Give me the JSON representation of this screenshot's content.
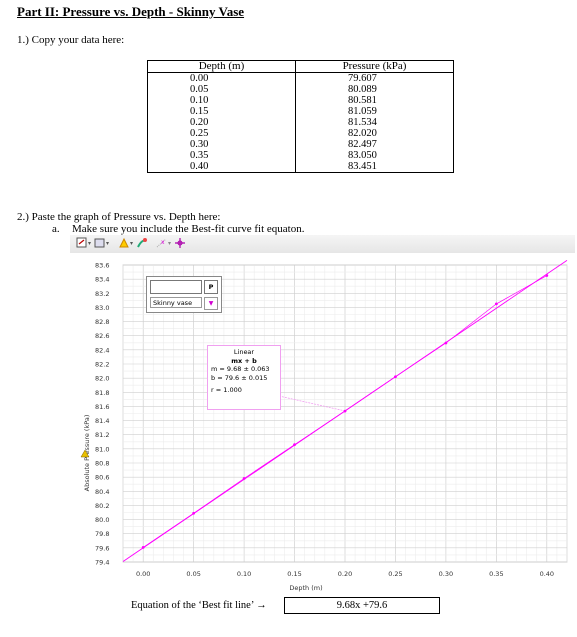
{
  "heading": "Part II: Pressure vs. Depth - Skinny Vase",
  "question1": "1.) Copy your data here:",
  "table": {
    "headers": [
      "Depth (m)",
      "Pressure (kPa)"
    ],
    "rows": [
      [
        "0.00",
        "79.607"
      ],
      [
        "0.05",
        "80.089"
      ],
      [
        "0.10",
        "80.581"
      ],
      [
        "0.15",
        "81.059"
      ],
      [
        "0.20",
        "81.534"
      ],
      [
        "0.25",
        "82.020"
      ],
      [
        "0.30",
        "82.497"
      ],
      [
        "0.35",
        "83.050"
      ],
      [
        "0.40",
        "83.451"
      ]
    ]
  },
  "question2": "2.) Paste the graph of Pressure vs. Depth here:",
  "question2a": {
    "marker": "a.",
    "text": "Make sure you include the Best-fit curve fit equaton."
  },
  "toolbar": {
    "icons": [
      "resize-icon",
      "screenshot-icon",
      "color-icon",
      "paint-icon",
      "tangent-icon",
      "crosshair-icon"
    ]
  },
  "series_panel": {
    "p_label": "P",
    "series_name": "Skinny vase"
  },
  "fit_box": {
    "title": "Linear",
    "formula": "mx + b",
    "m_line": "m = 9.68 ± 0.063",
    "b_line": "b = 79.6 ± 0.015",
    "r_line": "r = 1.000"
  },
  "chart_data": {
    "type": "scatter",
    "xlabel": "Depth (m)",
    "ylabel": "Absolute Pressure (kPa)",
    "xlim": [
      -0.02,
      0.42
    ],
    "ylim": [
      79.4,
      83.6
    ],
    "x_ticks": [
      "0.00",
      "0.05",
      "0.10",
      "0.15",
      "0.20",
      "0.25",
      "0.30",
      "0.35",
      "0.40"
    ],
    "y_ticks": [
      "79.4",
      "79.6",
      "79.8",
      "80.0",
      "80.2",
      "80.4",
      "80.6",
      "80.8",
      "81.0",
      "81.2",
      "81.4",
      "81.6",
      "81.8",
      "82.0",
      "82.2",
      "82.4",
      "82.6",
      "82.8",
      "83.0",
      "83.2",
      "83.4",
      "83.6"
    ],
    "series": [
      {
        "name": "Skinny vase",
        "x": [
          0.0,
          0.05,
          0.1,
          0.15,
          0.2,
          0.25,
          0.3,
          0.35,
          0.4
        ],
        "y": [
          79.607,
          80.089,
          80.581,
          81.059,
          81.534,
          82.02,
          82.497,
          83.05,
          83.451
        ],
        "color": "#ff00ff"
      }
    ],
    "fit": {
      "slope": 9.68,
      "intercept": 79.6,
      "color": "#ff00ff"
    },
    "grid": true
  },
  "equation": {
    "label": "Equation of the ‘Best fit line’ →",
    "value": "9.68x +79.6"
  }
}
